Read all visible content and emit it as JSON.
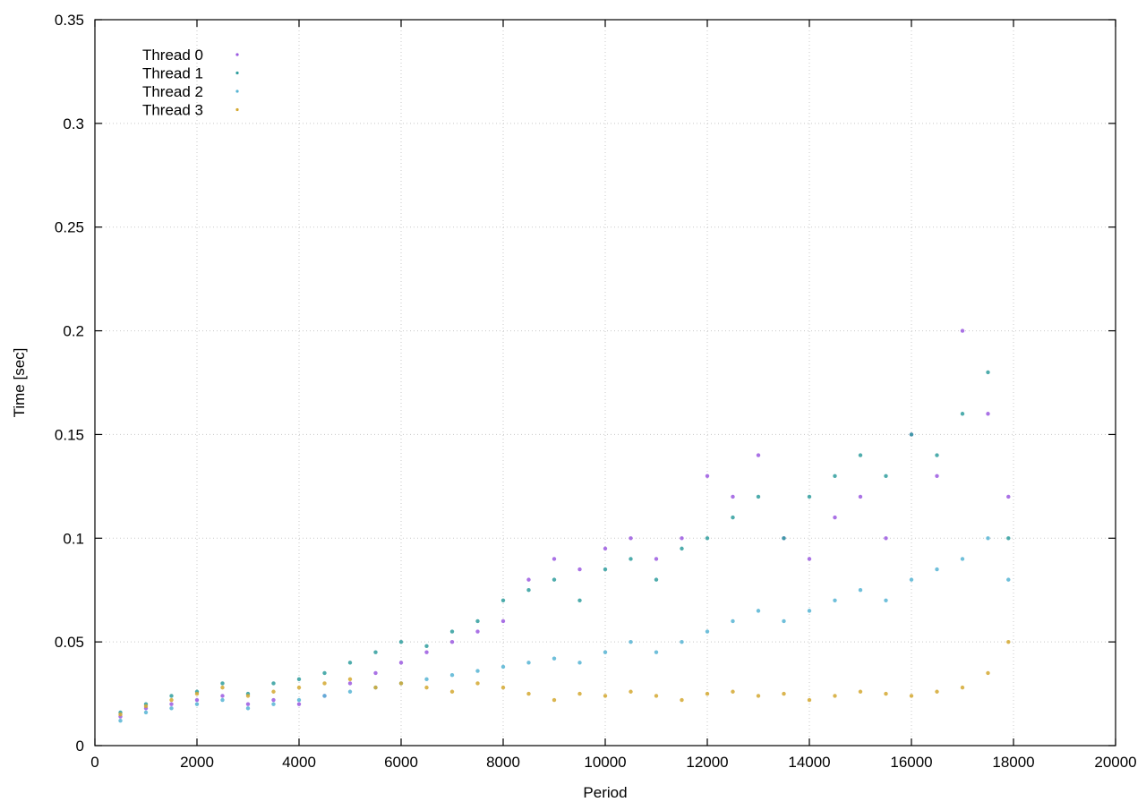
{
  "chart_data": {
    "type": "scatter",
    "title": "",
    "xlabel": "Period",
    "ylabel": "Time [sec]",
    "xlim": [
      0,
      20000
    ],
    "ylim": [
      0,
      0.35
    ],
    "x_ticks": [
      0,
      2000,
      4000,
      6000,
      8000,
      10000,
      12000,
      14000,
      16000,
      18000,
      20000
    ],
    "x_tick_labels": [
      "0",
      "2000",
      "4000",
      "6000",
      "8000",
      "10000",
      "12000",
      "14000",
      "16000",
      "18000",
      "20000"
    ],
    "y_ticks": [
      0,
      0.05,
      0.1,
      0.15,
      0.2,
      0.25,
      0.3,
      0.35
    ],
    "y_tick_labels": [
      "0",
      "0.05",
      "0.1",
      "0.15",
      "0.2",
      "0.25",
      "0.3",
      "0.35"
    ],
    "grid": true,
    "legend_position": "top-left",
    "series": [
      {
        "name": "Thread 0",
        "color": "#9b59e0",
        "points": [
          [
            500,
            0.014
          ],
          [
            1000,
            0.018
          ],
          [
            1500,
            0.02
          ],
          [
            2000,
            0.022
          ],
          [
            2500,
            0.024
          ],
          [
            3000,
            0.02
          ],
          [
            3500,
            0.022
          ],
          [
            4000,
            0.02
          ],
          [
            4500,
            0.024
          ],
          [
            5000,
            0.03
          ],
          [
            5500,
            0.035
          ],
          [
            6000,
            0.04
          ],
          [
            6500,
            0.045
          ],
          [
            7000,
            0.05
          ],
          [
            7500,
            0.055
          ],
          [
            8000,
            0.06
          ],
          [
            8500,
            0.08
          ],
          [
            9000,
            0.09
          ],
          [
            9500,
            0.085
          ],
          [
            10000,
            0.095
          ],
          [
            10500,
            0.1
          ],
          [
            11000,
            0.09
          ],
          [
            11500,
            0.1
          ],
          [
            12000,
            0.13
          ],
          [
            12500,
            0.12
          ],
          [
            13000,
            0.14
          ],
          [
            13500,
            0.1
          ],
          [
            14000,
            0.09
          ],
          [
            14500,
            0.11
          ],
          [
            15000,
            0.12
          ],
          [
            15500,
            0.1
          ],
          [
            16000,
            0.15
          ],
          [
            16500,
            0.13
          ],
          [
            17000,
            0.2
          ],
          [
            17500,
            0.16
          ],
          [
            17900,
            0.12
          ]
        ]
      },
      {
        "name": "Thread 1",
        "color": "#2f9e9e",
        "points": [
          [
            500,
            0.016
          ],
          [
            1000,
            0.02
          ],
          [
            1500,
            0.024
          ],
          [
            2000,
            0.026
          ],
          [
            2500,
            0.03
          ],
          [
            3000,
            0.025
          ],
          [
            3500,
            0.03
          ],
          [
            4000,
            0.032
          ],
          [
            4500,
            0.035
          ],
          [
            5000,
            0.04
          ],
          [
            5500,
            0.045
          ],
          [
            6000,
            0.05
          ],
          [
            6500,
            0.048
          ],
          [
            7000,
            0.055
          ],
          [
            7500,
            0.06
          ],
          [
            8000,
            0.07
          ],
          [
            8500,
            0.075
          ],
          [
            9000,
            0.08
          ],
          [
            9500,
            0.07
          ],
          [
            10000,
            0.085
          ],
          [
            10500,
            0.09
          ],
          [
            11000,
            0.08
          ],
          [
            11500,
            0.095
          ],
          [
            12000,
            0.1
          ],
          [
            12500,
            0.11
          ],
          [
            13000,
            0.12
          ],
          [
            13500,
            0.1
          ],
          [
            14000,
            0.12
          ],
          [
            14500,
            0.13
          ],
          [
            15000,
            0.14
          ],
          [
            15500,
            0.13
          ],
          [
            16000,
            0.15
          ],
          [
            16500,
            0.14
          ],
          [
            17000,
            0.16
          ],
          [
            17500,
            0.18
          ],
          [
            17900,
            0.1
          ]
        ]
      },
      {
        "name": "Thread 2",
        "color": "#56b4d3",
        "points": [
          [
            500,
            0.012
          ],
          [
            1000,
            0.016
          ],
          [
            1500,
            0.018
          ],
          [
            2000,
            0.02
          ],
          [
            2500,
            0.022
          ],
          [
            3000,
            0.018
          ],
          [
            3500,
            0.02
          ],
          [
            4000,
            0.022
          ],
          [
            4500,
            0.024
          ],
          [
            5000,
            0.026
          ],
          [
            5500,
            0.028
          ],
          [
            6000,
            0.03
          ],
          [
            6500,
            0.032
          ],
          [
            7000,
            0.034
          ],
          [
            7500,
            0.036
          ],
          [
            8000,
            0.038
          ],
          [
            8500,
            0.04
          ],
          [
            9000,
            0.042
          ],
          [
            9500,
            0.04
          ],
          [
            10000,
            0.045
          ],
          [
            10500,
            0.05
          ],
          [
            11000,
            0.045
          ],
          [
            11500,
            0.05
          ],
          [
            12000,
            0.055
          ],
          [
            12500,
            0.06
          ],
          [
            13000,
            0.065
          ],
          [
            13500,
            0.06
          ],
          [
            14000,
            0.065
          ],
          [
            14500,
            0.07
          ],
          [
            15000,
            0.075
          ],
          [
            15500,
            0.07
          ],
          [
            16000,
            0.08
          ],
          [
            16500,
            0.085
          ],
          [
            17000,
            0.09
          ],
          [
            17500,
            0.1
          ],
          [
            17900,
            0.08
          ]
        ]
      },
      {
        "name": "Thread 3",
        "color": "#d4a830",
        "points": [
          [
            500,
            0.015
          ],
          [
            1000,
            0.019
          ],
          [
            1500,
            0.022
          ],
          [
            2000,
            0.025
          ],
          [
            2500,
            0.028
          ],
          [
            3000,
            0.024
          ],
          [
            3500,
            0.026
          ],
          [
            4000,
            0.028
          ],
          [
            4500,
            0.03
          ],
          [
            5000,
            0.032
          ],
          [
            5500,
            0.028
          ],
          [
            6000,
            0.03
          ],
          [
            6500,
            0.028
          ],
          [
            7000,
            0.026
          ],
          [
            7500,
            0.03
          ],
          [
            8000,
            0.028
          ],
          [
            8500,
            0.025
          ],
          [
            9000,
            0.022
          ],
          [
            9500,
            0.025
          ],
          [
            10000,
            0.024
          ],
          [
            10500,
            0.026
          ],
          [
            11000,
            0.024
          ],
          [
            11500,
            0.022
          ],
          [
            12000,
            0.025
          ],
          [
            12500,
            0.026
          ],
          [
            13000,
            0.024
          ],
          [
            13500,
            0.025
          ],
          [
            14000,
            0.022
          ],
          [
            14500,
            0.024
          ],
          [
            15000,
            0.026
          ],
          [
            15500,
            0.025
          ],
          [
            16000,
            0.024
          ],
          [
            16500,
            0.026
          ],
          [
            17000,
            0.028
          ],
          [
            17500,
            0.035
          ],
          [
            17900,
            0.05
          ]
        ]
      }
    ]
  }
}
